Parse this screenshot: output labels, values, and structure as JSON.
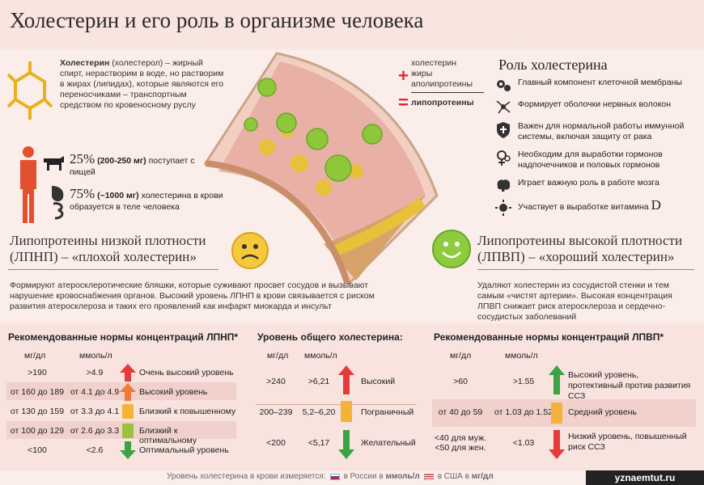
{
  "title": "Холестерин и его роль в организме человека",
  "intro": {
    "term": "Холестерин",
    "text_rest": " (холестерол) – жирный спирт, нерастворим в воде, но растворим в жирах (липидах), которые являются его переносчиками – транспортным средством по кровеносному руслу"
  },
  "intake": [
    {
      "percent": "25%",
      "amount": "(200-250 мг)",
      "text": "поступает с пищей"
    },
    {
      "percent": "75%",
      "amount": "(~1000 мг)",
      "text": "холестерина в крови образуется в теле человека"
    }
  ],
  "formula": {
    "plus": "+",
    "equals": "=",
    "line1": "холестерин",
    "line2": "жиры",
    "line3": "аполипротеины",
    "result": "липопротеины"
  },
  "role": {
    "title": "Роль холестерина",
    "items": [
      {
        "icon": "gears-icon",
        "text": "Главный компонент клеточной мембраны"
      },
      {
        "icon": "neuron-icon",
        "text": "Формирует оболочки нервных волокон"
      },
      {
        "icon": "shield-icon",
        "text": "Важен для нормальной работы иммунной системы, включая защиту от рака"
      },
      {
        "icon": "gender-icon",
        "text": "Необходим для выработки гормонов надпочечников и половых гормонов"
      },
      {
        "icon": "brain-icon",
        "text": "Играет важную роль в работе мозга"
      },
      {
        "icon": "sun-icon",
        "text": "Участвует в выработке витамина",
        "suffix": "D"
      }
    ]
  },
  "ldl": {
    "heading1": "Липопротеины низкой плотности",
    "heading2": "(ЛПНП) – «плохой холестерин»",
    "desc": "Формируют атеросклеротические бляшки, которые суживают просвет сосудов и вызывают нарушение кровоснабжения органов. Высокий уровень ЛПНП в крови связывается с риском развития атеросклероза и таких его проявлений как инфаркт миокарда и инсульт"
  },
  "hdl": {
    "heading1": "Липопротеины высокой плотности",
    "heading2": "(ЛПВП) – «хороший холестерин»",
    "desc": "Удаляют холестерин из сосудистой стенки и тем самым «чистят артерии». Высокая концентрация ЛПВП снижает риск атеросклероза и сердечно-сосудистых заболеваний"
  },
  "tables": {
    "ldl": {
      "title": "Рекомендованные нормы концентраций ЛПНП*",
      "col1": "мг/дл",
      "col2": "ммоль/л",
      "rows": [
        {
          "mg": ">190",
          "mmol": ">4.9",
          "label": "Очень высокий уровень",
          "color": "#e43b3b"
        },
        {
          "mg": "от 160 до 189",
          "mmol": "от 4.1 до 4.9",
          "label": "Высокий уровень",
          "color": "#ee7a3a"
        },
        {
          "mg": "от 130 до 159",
          "mmol": "от 3.3 до 4.1",
          "label": "Близкий к повышенному",
          "color": "#f5b23a"
        },
        {
          "mg": "от 100 до 129",
          "mmol": "от 2.6 до 3.3",
          "label": "Близкий к оптимальному",
          "color": "#9cc23d"
        },
        {
          "mg": "<100",
          "mmol": "<2.6",
          "label": "Оптимальный уровень",
          "color": "#3aa344"
        }
      ]
    },
    "total": {
      "title": "Уровень общего холестерина:",
      "col1": "мг/дл",
      "col2": "ммоль/л",
      "rows": [
        {
          "mg": ">240",
          "mmol": ">6,21",
          "label": "Высокий",
          "color": "#e43b3b"
        },
        {
          "mg": "200–239",
          "mmol": "5,2–6,20",
          "label": "Пограничный",
          "color": "#f5b23a"
        },
        {
          "mg": "<200",
          "mmol": "<5,17",
          "label": "Желательный",
          "color": "#3aa344"
        }
      ]
    },
    "hdl": {
      "title": "Рекомендованные нормы концентраций ЛПВП*",
      "col1": "мг/дл",
      "col2": "ммоль/л",
      "rows": [
        {
          "mg": ">60",
          "mmol": ">1.55",
          "label": "Высокий уровень, протективный против развития ССЗ",
          "color": "#3aa344"
        },
        {
          "mg": "от 40 до 59",
          "mmol": "от 1.03 до 1.52",
          "label": "Средний уровень",
          "color": "#f5b23a"
        },
        {
          "mg": "<40 для муж.\n<50 для жен.",
          "mmol": "<1.03",
          "label": "Низкий уровень, повышенный риск ССЗ",
          "color": "#e43b3b"
        }
      ]
    }
  },
  "footer": {
    "prefix": "Уровень холестерина в крови измеряется:",
    "ru_pre": "в России в",
    "ru_unit": "ммоль/л",
    "us_pre": "в США в",
    "us_unit": "мг/дл"
  },
  "watermark": "yznaemtut.ru"
}
